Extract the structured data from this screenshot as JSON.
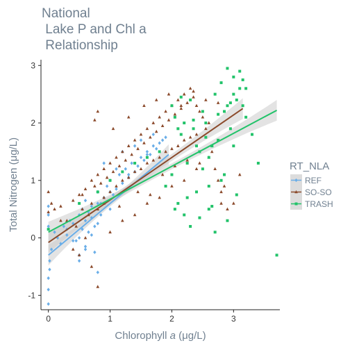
{
  "chart_data": {
    "type": "scatter",
    "title": [
      "National",
      " Lake P and Chl a",
      " Relationship"
    ],
    "xlabel": "Chlorophyll a (μg/L)",
    "xlabel_prefix": "Chlorophyll ",
    "xlabel_italic": "a",
    "xlabel_suffix": " (μg/L)",
    "ylabel": "Total Nitrogen (μg/L)",
    "xlim": [
      -0.12,
      3.75
    ],
    "ylim": [
      -1.25,
      3.1
    ],
    "x_ticks": [
      0,
      1,
      2,
      3
    ],
    "y_ticks": [
      -1,
      0,
      1,
      2,
      3
    ],
    "grid": false,
    "legend": {
      "title": "RT_NLA",
      "position": "right",
      "entries": [
        "REF",
        "SO-SO",
        "TRASH"
      ]
    },
    "colors": {
      "REF": "#6aaee8",
      "SO-SO": "#8b4a2b",
      "TRASH": "#22c36a",
      "ribbon": "#cccccc",
      "text": "#708090"
    },
    "series": [
      {
        "name": "REF",
        "marker": "diamond",
        "fit": {
          "x0": 0.0,
          "y0": -0.3,
          "x1": 1.95,
          "y1": 1.45
        },
        "x": [
          0.0,
          0.0,
          0.0,
          0.02,
          0.05,
          0.1,
          0.15,
          0.2,
          0.25,
          0.3,
          0.35,
          0.4,
          0.45,
          0.5,
          0.5,
          0.55,
          0.6,
          0.6,
          0.65,
          0.7,
          0.7,
          0.75,
          0.8,
          0.8,
          0.85,
          0.9,
          0.95,
          1.0,
          1.0,
          1.05,
          1.1,
          1.15,
          1.2,
          1.25,
          1.3,
          1.35,
          1.4,
          1.45,
          1.5,
          1.55,
          1.6,
          1.65,
          1.7,
          1.75,
          1.8,
          1.85,
          1.9,
          0.0,
          0.0,
          0.5,
          0.55,
          0.6,
          0.65,
          0.7,
          0.75,
          0.8,
          0.85,
          0.9,
          1.0,
          1.1,
          1.2,
          1.3,
          1.4,
          1.5,
          1.6,
          1.7,
          0.0,
          0.02,
          0.3,
          0.4,
          0.5,
          0.6,
          0.8
        ],
        "y": [
          -1.15,
          -0.9,
          -0.7,
          -0.4,
          -0.2,
          0.1,
          0.0,
          -0.1,
          0.2,
          0.05,
          0.3,
          0.25,
          -0.05,
          0.4,
          0.0,
          0.5,
          0.3,
          0.65,
          0.1,
          0.55,
          0.35,
          0.2,
          0.6,
          0.8,
          0.4,
          0.7,
          0.9,
          0.5,
          1.0,
          0.75,
          0.85,
          1.1,
          0.95,
          1.2,
          1.05,
          1.3,
          1.15,
          1.25,
          1.4,
          1.35,
          1.5,
          1.45,
          1.6,
          1.55,
          1.65,
          1.7,
          1.75,
          0.4,
          0.55,
          -0.3,
          0.15,
          -0.15,
          0.45,
          0.05,
          -0.25,
          0.25,
          0.6,
          1.3,
          0.8,
          1.2,
          1.5,
          1.1,
          1.6,
          1.7,
          1.45,
          1.8,
          0.2,
          -0.55,
          0.15,
          -0.05,
          -0.4,
          -0.2,
          -0.6
        ]
      },
      {
        "name": "SO-SO",
        "marker": "triangle",
        "fit": {
          "x0": 0.0,
          "y0": -0.08,
          "x1": 3.15,
          "y1": 2.25
        },
        "x": [
          0.0,
          0.0,
          0.05,
          0.1,
          0.2,
          0.3,
          0.4,
          0.45,
          0.5,
          0.55,
          0.6,
          0.65,
          0.7,
          0.7,
          0.75,
          0.8,
          0.8,
          0.85,
          0.9,
          0.9,
          0.95,
          1.0,
          1.0,
          1.05,
          1.1,
          1.1,
          1.15,
          1.2,
          1.2,
          1.25,
          1.3,
          1.3,
          1.35,
          1.4,
          1.4,
          1.45,
          1.5,
          1.5,
          1.55,
          1.6,
          1.6,
          1.65,
          1.7,
          1.7,
          1.75,
          1.8,
          1.8,
          1.85,
          1.9,
          1.9,
          1.95,
          2.0,
          2.0,
          2.05,
          2.1,
          2.1,
          2.15,
          2.2,
          2.2,
          2.25,
          2.3,
          2.3,
          2.35,
          2.4,
          2.4,
          2.45,
          2.5,
          2.55,
          2.6,
          2.65,
          2.7,
          2.75,
          2.8,
          2.9,
          3.0,
          3.1,
          0.4,
          0.5,
          0.6,
          0.7,
          0.8,
          1.0,
          1.2,
          1.4,
          1.6,
          1.8,
          2.0,
          2.2,
          2.4,
          2.6,
          2.8,
          0.75,
          0.8,
          1.05,
          1.3,
          1.55,
          1.75,
          1.95,
          2.15,
          2.35,
          2.55,
          2.75,
          0.2,
          0.55,
          0.9,
          1.15,
          1.45,
          1.65,
          1.85,
          2.05,
          2.25,
          2.45,
          2.65,
          2.85
        ],
        "y": [
          0.8,
          0.45,
          0.6,
          0.5,
          0.55,
          0.3,
          0.65,
          0.2,
          0.75,
          0.5,
          0.85,
          0.4,
          1.0,
          0.6,
          0.9,
          1.1,
          0.5,
          0.95,
          1.2,
          0.7,
          1.05,
          1.3,
          0.8,
          1.15,
          1.4,
          0.9,
          1.25,
          1.5,
          1.0,
          1.35,
          1.6,
          1.05,
          1.45,
          1.7,
          1.15,
          1.55,
          1.8,
          1.2,
          1.65,
          1.9,
          1.3,
          1.75,
          2.0,
          1.35,
          1.85,
          2.1,
          1.4,
          1.95,
          2.2,
          1.5,
          2.05,
          2.3,
          1.55,
          2.15,
          2.4,
          1.6,
          2.25,
          2.5,
          1.7,
          2.35,
          2.6,
          1.75,
          2.45,
          2.3,
          1.8,
          2.2,
          2.1,
          1.9,
          2.0,
          1.6,
          1.2,
          1.0,
          0.8,
          0.5,
          0.6,
          1.1,
          -0.2,
          -0.3,
          0.0,
          -0.5,
          -0.85,
          0.1,
          0.3,
          0.4,
          0.6,
          0.7,
          0.9,
          1.0,
          1.2,
          1.4,
          0.6,
          2.05,
          2.2,
          1.9,
          2.1,
          2.3,
          2.4,
          2.5,
          2.3,
          2.55,
          2.4,
          2.35,
          0.3,
          0.75,
          0.6,
          0.55,
          0.8,
          0.75,
          1.1,
          1.25,
          1.35,
          1.3,
          1.5,
          0.9
        ]
      },
      {
        "name": "TRASH",
        "marker": "square",
        "fit": {
          "x0": 0.0,
          "y0": 0.1,
          "x1": 3.7,
          "y1": 2.22
        },
        "x": [
          0.0,
          0.5,
          0.8,
          1.0,
          1.2,
          1.4,
          1.6,
          1.8,
          1.9,
          2.0,
          2.05,
          2.1,
          2.15,
          2.2,
          2.25,
          2.3,
          2.35,
          2.4,
          2.45,
          2.5,
          2.55,
          2.6,
          2.65,
          2.7,
          2.75,
          2.8,
          2.85,
          2.9,
          2.95,
          3.0,
          3.05,
          3.1,
          3.15,
          3.2,
          3.3,
          3.4,
          3.7,
          2.0,
          2.1,
          2.2,
          2.3,
          2.4,
          2.5,
          2.6,
          2.7,
          2.8,
          2.9,
          3.0,
          3.1,
          2.25,
          2.45,
          2.65,
          2.85,
          3.05,
          2.15,
          2.35,
          2.55,
          2.75,
          2.95,
          3.15,
          2.05,
          2.6,
          3.2,
          3.0,
          2.9
        ],
        "y": [
          0.15,
          0.6,
          0.8,
          1.0,
          1.15,
          1.3,
          1.4,
          1.5,
          0.9,
          1.1,
          2.1,
          0.6,
          1.8,
          0.4,
          1.3,
          0.2,
          1.9,
          0.8,
          1.5,
          1.2,
          2.0,
          0.5,
          1.6,
          0.1,
          1.7,
          1.0,
          2.2,
          0.3,
          1.9,
          2.5,
          2.4,
          2.6,
          2.3,
          2.1,
          1.8,
          1.3,
          -0.3,
          2.3,
          1.9,
          2.0,
          2.4,
          1.6,
          2.2,
          1.4,
          2.5,
          2.7,
          2.3,
          2.8,
          2.9,
          0.7,
          0.35,
          0.55,
          1.1,
          0.75,
          2.45,
          2.05,
          1.75,
          2.15,
          2.35,
          2.75,
          0.5,
          0.9,
          2.6,
          1.6,
          2.95
        ]
      }
    ]
  }
}
